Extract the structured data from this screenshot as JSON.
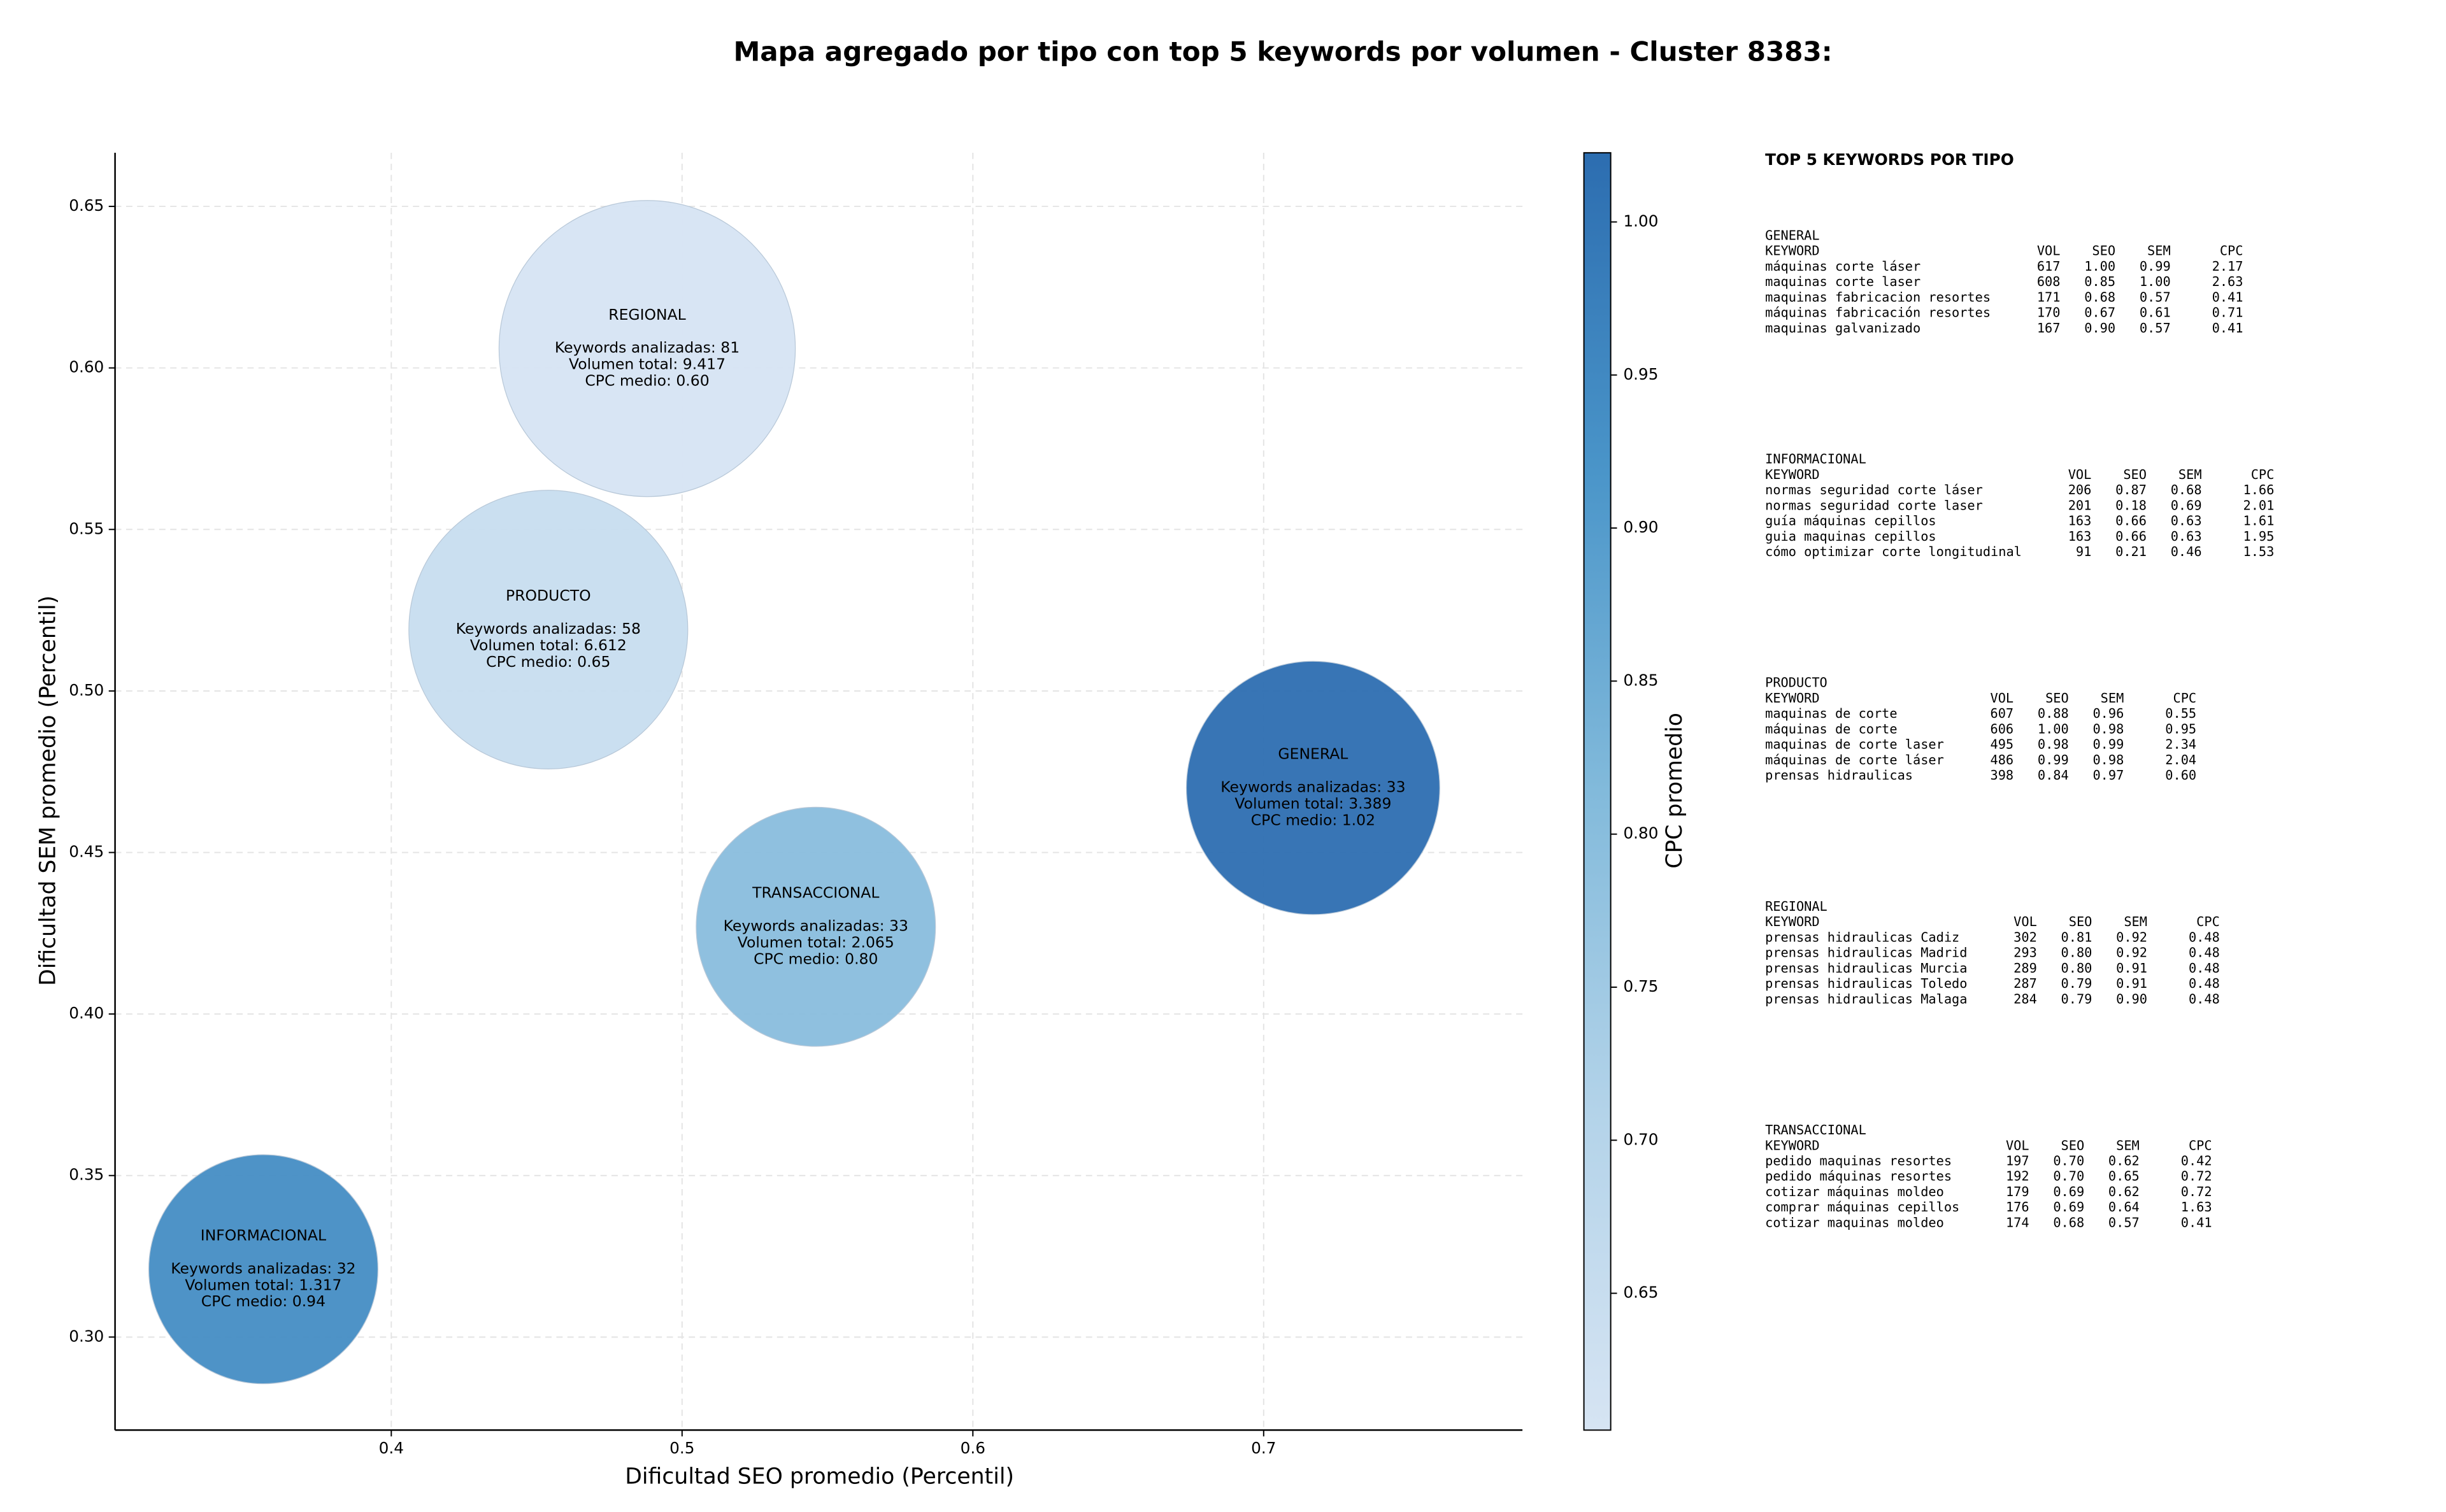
{
  "chart_data": {
    "type": "scatter",
    "title": "Mapa agregado por tipo con top 5 keywords por volumen - Cluster 8383:",
    "xlabel": "Dificultad SEO promedio (Percentil)",
    "ylabel": "Dificultad SEM promedio (Percentil)",
    "xlim": [
      0.305,
      0.789
    ],
    "ylim": [
      0.2712,
      0.6666
    ],
    "xticks": [
      0.4,
      0.5,
      0.6,
      0.7
    ],
    "yticks": [
      {
        "value": 0.3,
        "label": "0.30"
      },
      0.35,
      {
        "value": 0.4,
        "label": "0.40"
      },
      0.45,
      {
        "value": 0.5,
        "label": "0.50"
      },
      0.55,
      {
        "value": 0.6,
        "label": "0.60"
      },
      0.65
    ],
    "grid": true,
    "categories": [
      "REGIONAL",
      "PRODUCTO",
      "GENERAL",
      "TRANSACCIONAL",
      "INFORMACIONAL"
    ],
    "x": [
      0.488,
      0.454,
      0.717,
      0.546,
      0.356
    ],
    "values": [
      0.606,
      0.519,
      0.47,
      0.427,
      0.321
    ],
    "sizes": [
      9417,
      6612,
      3389,
      2065,
      1317
    ],
    "cpc": [
      0.6,
      0.65,
      1.02,
      0.8,
      0.94
    ],
    "value_labels": [
      [
        "Keywords analizadas: 81",
        "Volumen total: 9.417",
        "CPC medio: 0.60"
      ],
      [
        "Keywords analizadas: 58",
        "Volumen total: 6.612",
        "CPC medio: 0.65"
      ],
      [
        "Keywords analizadas: 33",
        "Volumen total: 3.389",
        "CPC medio: 1.02"
      ],
      [
        "Keywords analizadas: 33",
        "Volumen total: 2.065",
        "CPC medio: 0.80"
      ],
      [
        "Keywords analizadas: 32",
        "Volumen total: 1.317",
        "CPC medio: 0.94"
      ]
    ],
    "colorbar": {
      "label": "CPC promedio",
      "lim": [
        0.6053,
        1.0226
      ],
      "ticks": [
        0.65,
        {
          "value": 0.7,
          "label": "0.70"
        },
        0.75,
        {
          "value": 0.8,
          "label": "0.80"
        },
        0.85,
        {
          "value": 0.9,
          "label": "0.90"
        },
        0.95,
        {
          "value": 1,
          "label": "1.00"
        }
      ],
      "colormap": [
        "#d6e4f3",
        "#b3d3e9",
        "#82badb",
        "#4a95c9",
        "#2c6db0"
      ]
    },
    "side_panel": {
      "title": "TOP 5 KEYWORDS POR TIPO",
      "columns": [
        "KEYWORD",
        "VOL",
        "SEO",
        "SEM",
        "CPC"
      ],
      "groups": [
        {
          "name": "GENERAL",
          "rows": [
            [
              "máquinas corte láser",
              "617",
              "1.00",
              "0.99",
              "2.17"
            ],
            [
              "maquinas corte laser",
              "608",
              "0.85",
              "1.00",
              "2.63"
            ],
            [
              "maquinas fabricacion resortes",
              "171",
              "0.68",
              "0.57",
              "0.41"
            ],
            [
              "máquinas fabricación resortes",
              "170",
              "0.67",
              "0.61",
              "0.71"
            ],
            [
              "maquinas galvanizado",
              "167",
              "0.90",
              "0.57",
              "0.41"
            ]
          ]
        },
        {
          "name": "INFORMACIONAL",
          "rows": [
            [
              "normas seguridad corte láser",
              "206",
              "0.87",
              "0.68",
              "1.66"
            ],
            [
              "normas seguridad corte laser",
              "201",
              "0.18",
              "0.69",
              "2.01"
            ],
            [
              "guía máquinas cepillos",
              "163",
              "0.66",
              "0.63",
              "1.61"
            ],
            [
              "guia maquinas cepillos",
              "163",
              "0.66",
              "0.63",
              "1.95"
            ],
            [
              "cómo optimizar corte longitudinal",
              "91",
              "0.21",
              "0.46",
              "1.53"
            ]
          ]
        },
        {
          "name": "PRODUCTO",
          "rows": [
            [
              "maquinas de corte",
              "607",
              "0.88",
              "0.96",
              "0.55"
            ],
            [
              "máquinas de corte",
              "606",
              "1.00",
              "0.98",
              "0.95"
            ],
            [
              "maquinas de corte laser",
              "495",
              "0.98",
              "0.99",
              "2.34"
            ],
            [
              "máquinas de corte láser",
              "486",
              "0.99",
              "0.98",
              "2.04"
            ],
            [
              "prensas hidraulicas",
              "398",
              "0.84",
              "0.97",
              "0.60"
            ]
          ]
        },
        {
          "name": "REGIONAL",
          "rows": [
            [
              "prensas hidraulicas Cadiz",
              "302",
              "0.81",
              "0.92",
              "0.48"
            ],
            [
              "prensas hidraulicas Madrid",
              "293",
              "0.80",
              "0.92",
              "0.48"
            ],
            [
              "prensas hidraulicas Murcia",
              "289",
              "0.80",
              "0.91",
              "0.48"
            ],
            [
              "prensas hidraulicas Toledo",
              "287",
              "0.79",
              "0.91",
              "0.48"
            ],
            [
              "prensas hidraulicas Malaga",
              "284",
              "0.79",
              "0.90",
              "0.48"
            ]
          ]
        },
        {
          "name": "TRANSACCIONAL",
          "rows": [
            [
              "pedido maquinas resortes",
              "197",
              "0.70",
              "0.62",
              "0.42"
            ],
            [
              "pedido máquinas resortes",
              "192",
              "0.70",
              "0.65",
              "0.72"
            ],
            [
              "cotizar máquinas moldeo",
              "179",
              "0.69",
              "0.62",
              "0.72"
            ],
            [
              "comprar máquinas cepillos",
              "176",
              "0.69",
              "0.64",
              "1.63"
            ],
            [
              "cotizar maquinas moldeo",
              "174",
              "0.68",
              "0.57",
              "0.41"
            ]
          ]
        }
      ]
    }
  }
}
